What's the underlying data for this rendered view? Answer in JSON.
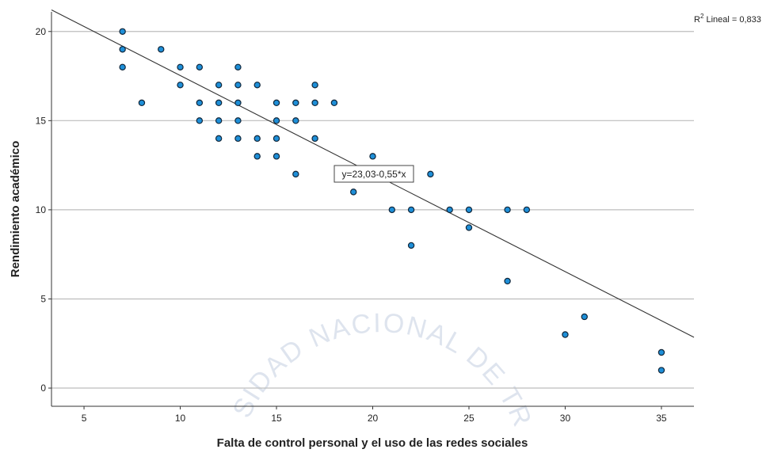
{
  "chart_data": {
    "type": "scatter",
    "x_label": "Falta de control personal y el uso de las redes sociales",
    "y_label": "Rendimiento académico",
    "x": [
      7,
      7,
      7,
      9,
      8,
      10,
      10,
      11,
      11,
      11,
      12,
      12,
      12,
      12,
      13,
      13,
      13,
      13,
      13,
      14,
      14,
      14,
      15,
      15,
      15,
      15,
      16,
      16,
      16,
      17,
      17,
      17,
      18,
      19,
      20,
      21,
      22,
      22,
      23,
      24,
      25,
      25,
      27,
      27,
      28,
      30,
      31,
      35,
      35
    ],
    "y": [
      20,
      19,
      18,
      19,
      16,
      18,
      17,
      18,
      16,
      15,
      17,
      16,
      15,
      14,
      18,
      17,
      16,
      15,
      14,
      17,
      14,
      13,
      16,
      15,
      14,
      13,
      16,
      15,
      12,
      17,
      16,
      14,
      16,
      11,
      13,
      10,
      10,
      8,
      12,
      10,
      10,
      9,
      10,
      6,
      10,
      3,
      4,
      2,
      1
    ],
    "color": "#1e8fd8",
    "xlim": [
      3.31,
      36.69
    ],
    "ylim": [
      -1.02,
      21.1
    ],
    "xticks": [
      5,
      10,
      15,
      20,
      25,
      30,
      35
    ],
    "yticks": [
      0,
      5,
      10,
      15,
      20
    ],
    "grid": true,
    "fit": {
      "intercept": 23.03,
      "slope": -0.55,
      "label": "y=23,03-0,55*x"
    },
    "r2_label": {
      "base": "R",
      "sup": "2",
      "rest": " Lineal = 0,833"
    },
    "watermark": "UNIVERSIDAD NACIONAL DE TRUJILLO"
  }
}
